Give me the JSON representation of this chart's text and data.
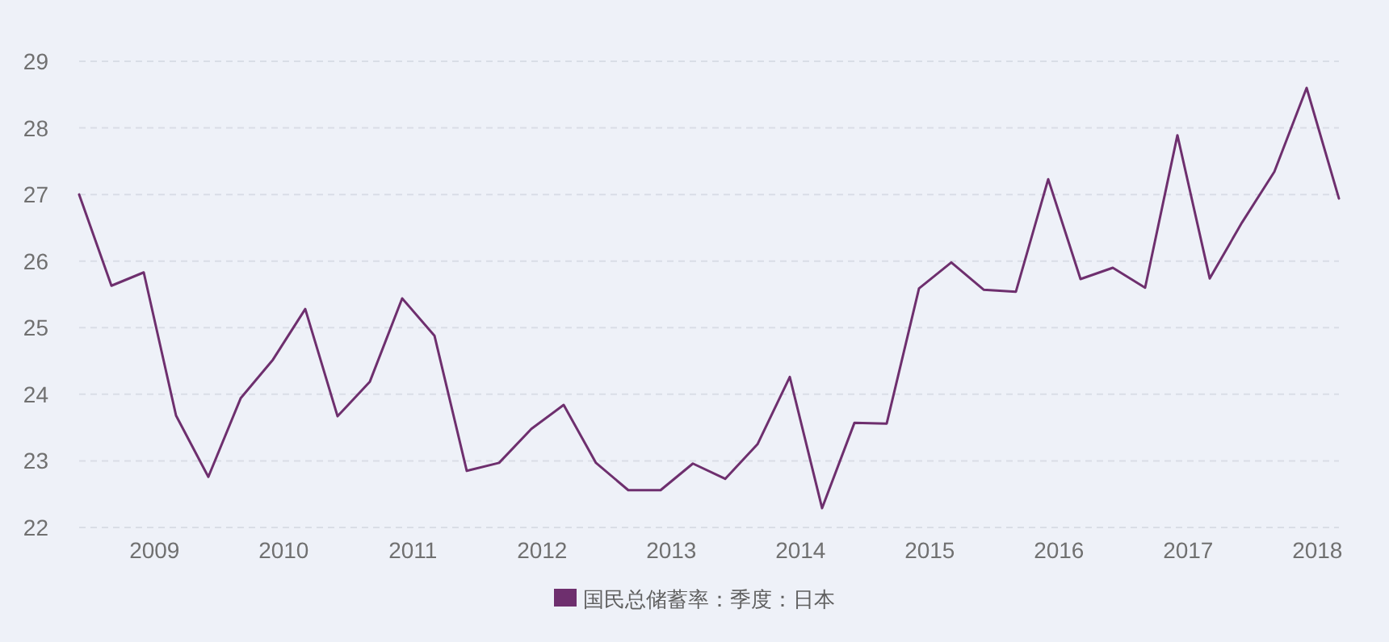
{
  "chart_data": {
    "type": "line",
    "x": [
      "2008-06",
      "2008-09",
      "2008-12",
      "2009-03",
      "2009-06",
      "2009-09",
      "2009-12",
      "2010-03",
      "2010-06",
      "2010-09",
      "2010-12",
      "2011-03",
      "2011-06",
      "2011-09",
      "2011-12",
      "2012-03",
      "2012-06",
      "2012-09",
      "2012-12",
      "2013-03",
      "2013-06",
      "2013-09",
      "2013-12",
      "2014-03",
      "2014-06",
      "2014-09",
      "2014-12",
      "2015-03",
      "2015-06",
      "2015-09",
      "2015-12",
      "2016-03",
      "2016-06",
      "2016-09",
      "2016-12",
      "2017-03",
      "2017-06",
      "2017-09",
      "2017-12",
      "2018-03"
    ],
    "series": [
      {
        "name": "国民总储蓄率：季度：日本",
        "color": "#6e2f6e",
        "values": [
          27.0,
          25.63,
          25.83,
          23.68,
          22.76,
          23.94,
          24.52,
          25.28,
          23.67,
          24.19,
          25.44,
          24.88,
          22.85,
          22.97,
          23.48,
          23.84,
          22.97,
          22.56,
          22.56,
          22.96,
          22.73,
          23.25,
          24.26,
          22.29,
          23.57,
          23.56,
          25.59,
          25.98,
          25.57,
          25.54,
          27.23,
          25.73,
          25.9,
          25.6,
          27.89,
          25.74,
          26.58,
          27.34,
          28.6,
          26.94
        ]
      }
    ],
    "xlim": [
      "2008-06",
      "2018-03"
    ],
    "xticks": [
      "2009",
      "2010",
      "2011",
      "2012",
      "2013",
      "2014",
      "2015",
      "2016",
      "2017",
      "2018"
    ],
    "ylim": [
      22,
      29
    ],
    "yticks": [
      22,
      23,
      24,
      25,
      26,
      27,
      28,
      29
    ],
    "grid": "y",
    "legend": "bottom",
    "marker": "none",
    "line_style": "solid"
  }
}
